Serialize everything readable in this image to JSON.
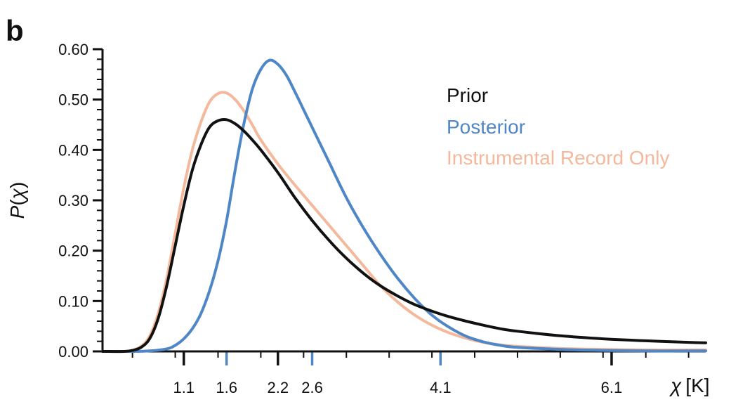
{
  "panel_label": "b",
  "colors": {
    "prior": "#111111",
    "posterior": "#4f86c6",
    "instrumental": "#f4b99c"
  },
  "legend": [
    {
      "label": "Prior",
      "color": "#111111"
    },
    {
      "label": "Posterior",
      "color": "#4f86c6"
    },
    {
      "label": "Instrumental Record Only",
      "color": "#f4b99c"
    }
  ],
  "y_axis_title": {
    "italic": "P",
    "paren_open": "(",
    "symbol": "χ",
    "paren_close": ")"
  },
  "x_axis_title": {
    "symbol": "χ",
    "unit": "[K]"
  },
  "chart_data": {
    "type": "line",
    "xlim": [
      0.15,
      7.2
    ],
    "ylim": [
      0,
      0.6
    ],
    "yticks": [
      "0.00",
      "0.10",
      "0.20",
      "0.30",
      "0.40",
      "0.50",
      "0.60"
    ],
    "xtick_labels": [
      {
        "value": 1.1,
        "label": "1.1",
        "color": "#111111"
      },
      {
        "value": 1.6,
        "label": "1.6",
        "color": "#4f86c6"
      },
      {
        "value": 2.2,
        "label": "2.2",
        "color": "#111111"
      },
      {
        "value": 2.6,
        "label": "2.6",
        "color": "#4f86c6"
      },
      {
        "value": 4.1,
        "label": "4.1",
        "color": "#4f86c6"
      },
      {
        "value": 6.1,
        "label": "6.1",
        "color": "#111111"
      }
    ],
    "series": [
      {
        "name": "Prior",
        "color": "#111111",
        "x": [
          0.15,
          0.4,
          0.5,
          0.6,
          0.7,
          0.8,
          0.9,
          1.0,
          1.1,
          1.2,
          1.3,
          1.4,
          1.5,
          1.6,
          1.7,
          1.8,
          1.9,
          2.0,
          2.2,
          2.4,
          2.6,
          2.8,
          3.0,
          3.2,
          3.4,
          3.6,
          3.8,
          4.0,
          4.2,
          4.4,
          4.6,
          4.8,
          5.0,
          5.5,
          6.0,
          6.5,
          7.0,
          7.2
        ],
        "y": [
          0.0,
          0.0,
          0.002,
          0.008,
          0.025,
          0.065,
          0.13,
          0.21,
          0.29,
          0.36,
          0.41,
          0.445,
          0.458,
          0.46,
          0.452,
          0.438,
          0.42,
          0.4,
          0.355,
          0.305,
          0.26,
          0.22,
          0.185,
          0.155,
          0.13,
          0.11,
          0.093,
          0.08,
          0.069,
          0.06,
          0.052,
          0.045,
          0.04,
          0.031,
          0.025,
          0.021,
          0.018,
          0.017
        ]
      },
      {
        "name": "Posterior",
        "color": "#4f86c6",
        "x": [
          0.15,
          0.5,
          0.7,
          0.9,
          1.0,
          1.1,
          1.2,
          1.3,
          1.4,
          1.5,
          1.6,
          1.7,
          1.8,
          1.9,
          2.0,
          2.1,
          2.2,
          2.3,
          2.4,
          2.5,
          2.6,
          2.7,
          2.8,
          3.0,
          3.2,
          3.4,
          3.6,
          3.8,
          4.0,
          4.2,
          4.4,
          4.6,
          4.8,
          5.0,
          5.5,
          6.0,
          6.5,
          7.0,
          7.2
        ],
        "y": [
          0.0,
          0.0,
          0.001,
          0.005,
          0.012,
          0.025,
          0.045,
          0.075,
          0.12,
          0.18,
          0.26,
          0.36,
          0.45,
          0.52,
          0.56,
          0.578,
          0.57,
          0.548,
          0.515,
          0.48,
          0.445,
          0.41,
          0.375,
          0.305,
          0.245,
          0.192,
          0.145,
          0.105,
          0.072,
          0.048,
          0.03,
          0.019,
          0.012,
          0.008,
          0.004,
          0.002,
          0.001,
          0.001,
          0.001
        ]
      },
      {
        "name": "Instrumental Record Only",
        "color": "#f4b99c",
        "x": [
          0.15,
          0.4,
          0.5,
          0.6,
          0.7,
          0.8,
          0.9,
          1.0,
          1.1,
          1.2,
          1.3,
          1.4,
          1.5,
          1.6,
          1.7,
          1.8,
          1.9,
          2.0,
          2.2,
          2.4,
          2.6,
          2.8,
          3.0,
          3.2,
          3.4,
          3.6,
          3.8,
          4.0,
          4.2,
          4.4,
          4.6,
          4.8,
          5.0,
          5.5,
          6.0,
          6.5,
          7.0,
          7.2
        ],
        "y": [
          0.0,
          0.0,
          0.002,
          0.01,
          0.03,
          0.075,
          0.145,
          0.235,
          0.325,
          0.4,
          0.455,
          0.495,
          0.512,
          0.513,
          0.5,
          0.478,
          0.45,
          0.42,
          0.372,
          0.33,
          0.29,
          0.25,
          0.21,
          0.17,
          0.13,
          0.098,
          0.072,
          0.052,
          0.037,
          0.026,
          0.018,
          0.013,
          0.01,
          0.006,
          0.004,
          0.003,
          0.003,
          0.003
        ]
      }
    ]
  }
}
